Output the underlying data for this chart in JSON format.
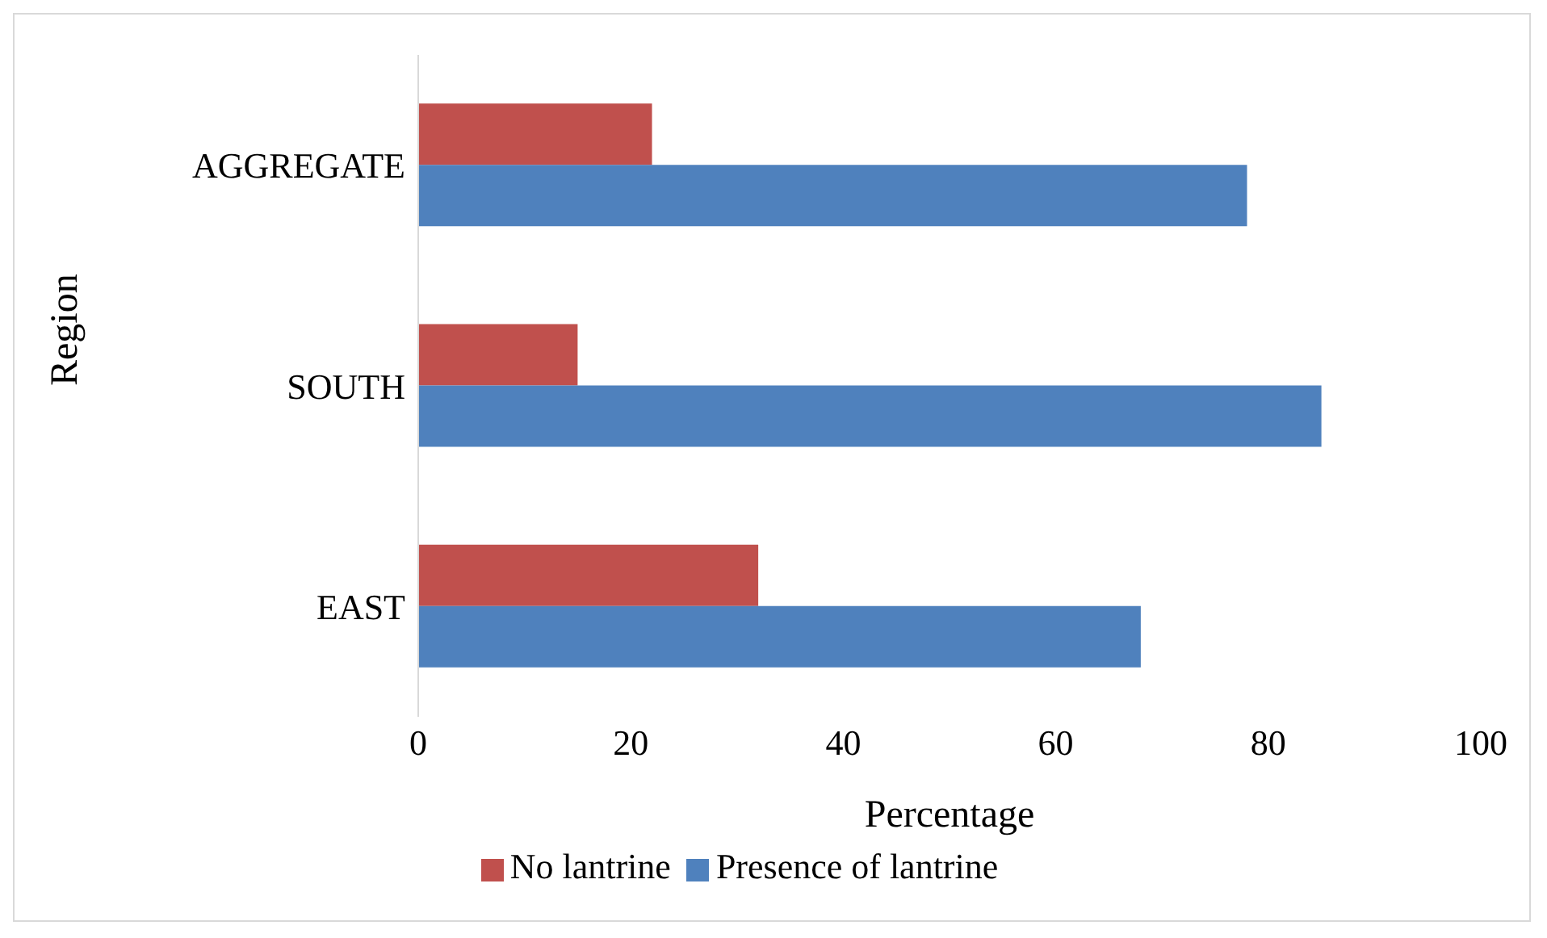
{
  "chart_data": {
    "type": "bar",
    "orientation": "horizontal",
    "xlabel": "Percentage",
    "ylabel": "Region",
    "categories": [
      "AGGREGATE",
      "SOUTH",
      "EAST"
    ],
    "series": [
      {
        "name": "No lantrine",
        "color": "#c0504d",
        "values": [
          22,
          15,
          32
        ]
      },
      {
        "name": "Presence of lantrine",
        "color": "#4f81bd",
        "values": [
          78,
          85,
          68
        ]
      }
    ],
    "xlim": [
      0,
      100
    ],
    "xticks": [
      0,
      20,
      40,
      60,
      80,
      100
    ],
    "grid": false,
    "legend": "bottom"
  }
}
